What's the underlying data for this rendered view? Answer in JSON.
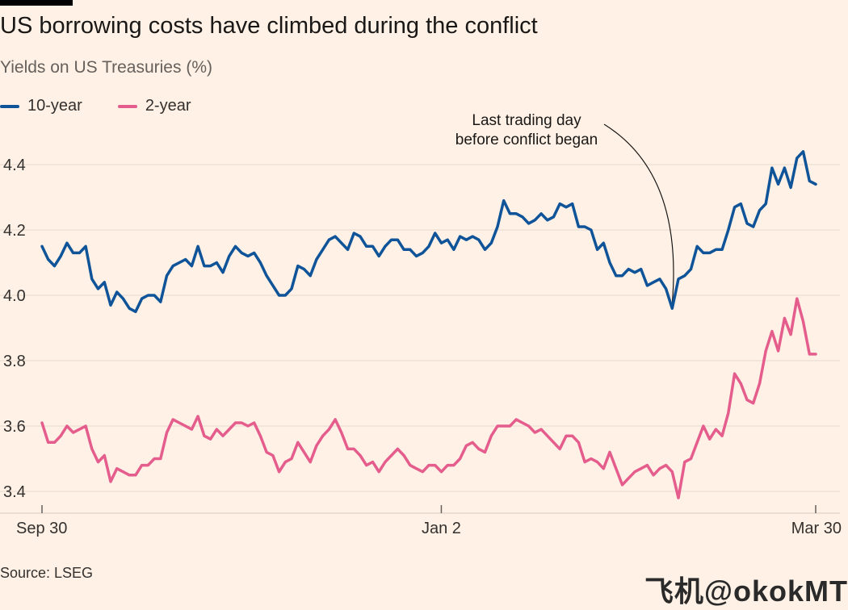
{
  "header": {
    "title": "US borrowing costs have climbed during the conflict",
    "subtitle": "Yields on US Treasuries (%)"
  },
  "footer": {
    "source": "Source: LSEG",
    "watermark": "飞机@okokMT"
  },
  "chart_data": {
    "type": "line",
    "title": "US borrowing costs have climbed during the conflict",
    "subtitle": "Yields on US Treasuries (%)",
    "xlabel": "",
    "ylabel": "",
    "ylim": [
      3.35,
      4.5
    ],
    "yticks": [
      3.4,
      3.6,
      3.8,
      4.0,
      4.2,
      4.4
    ],
    "ytick_labels": [
      "3.4",
      "3.6",
      "3.8",
      "4.0",
      "4.2",
      "4.4"
    ],
    "xticks": [
      {
        "index": 0,
        "label": "Sep 30"
      },
      {
        "index": 64,
        "label": "Jan 2"
      },
      {
        "index": 124,
        "label": "Mar 30"
      }
    ],
    "grid": true,
    "legend_position": "top-left",
    "n_points": 125,
    "series": [
      {
        "name": "10-year",
        "color": "#0F5499",
        "values": [
          4.15,
          4.11,
          4.09,
          4.12,
          4.16,
          4.13,
          4.13,
          4.15,
          4.05,
          4.02,
          4.04,
          3.97,
          4.01,
          3.99,
          3.96,
          3.95,
          3.99,
          4.0,
          4.0,
          3.98,
          4.06,
          4.09,
          4.1,
          4.11,
          4.09,
          4.15,
          4.09,
          4.09,
          4.1,
          4.07,
          4.12,
          4.15,
          4.13,
          4.12,
          4.13,
          4.1,
          4.06,
          4.03,
          4.0,
          4.0,
          4.02,
          4.09,
          4.08,
          4.06,
          4.11,
          4.14,
          4.17,
          4.18,
          4.16,
          4.14,
          4.19,
          4.18,
          4.15,
          4.15,
          4.12,
          4.15,
          4.17,
          4.17,
          4.14,
          4.14,
          4.12,
          4.13,
          4.15,
          4.19,
          4.16,
          4.17,
          4.14,
          4.18,
          4.17,
          4.18,
          4.17,
          4.14,
          4.16,
          4.21,
          4.29,
          4.25,
          4.25,
          4.24,
          4.22,
          4.23,
          4.25,
          4.23,
          4.24,
          4.28,
          4.27,
          4.28,
          4.21,
          4.21,
          4.2,
          4.14,
          4.16,
          4.1,
          4.06,
          4.06,
          4.08,
          4.07,
          4.08,
          4.03,
          4.04,
          4.05,
          4.02,
          3.96,
          4.05,
          4.06,
          4.08,
          4.15,
          4.13,
          4.13,
          4.14,
          4.14,
          4.2,
          4.27,
          4.28,
          4.22,
          4.21,
          4.26,
          4.28,
          4.39,
          4.34,
          4.39,
          4.33,
          4.42,
          4.44,
          4.35,
          4.34
        ]
      },
      {
        "name": "2-year",
        "color": "#E45D8C",
        "values": [
          3.61,
          3.55,
          3.55,
          3.57,
          3.6,
          3.58,
          3.59,
          3.6,
          3.53,
          3.49,
          3.51,
          3.43,
          3.47,
          3.46,
          3.45,
          3.45,
          3.48,
          3.48,
          3.5,
          3.5,
          3.58,
          3.62,
          3.61,
          3.6,
          3.59,
          3.63,
          3.57,
          3.56,
          3.59,
          3.57,
          3.59,
          3.61,
          3.61,
          3.6,
          3.61,
          3.57,
          3.52,
          3.51,
          3.46,
          3.49,
          3.5,
          3.55,
          3.52,
          3.49,
          3.54,
          3.57,
          3.59,
          3.62,
          3.58,
          3.53,
          3.53,
          3.51,
          3.48,
          3.49,
          3.46,
          3.49,
          3.51,
          3.53,
          3.51,
          3.48,
          3.47,
          3.46,
          3.48,
          3.48,
          3.46,
          3.48,
          3.48,
          3.5,
          3.54,
          3.55,
          3.53,
          3.52,
          3.57,
          3.6,
          3.6,
          3.6,
          3.62,
          3.61,
          3.6,
          3.58,
          3.59,
          3.57,
          3.55,
          3.53,
          3.57,
          3.57,
          3.55,
          3.49,
          3.5,
          3.49,
          3.47,
          3.52,
          3.47,
          3.42,
          3.44,
          3.46,
          3.47,
          3.48,
          3.45,
          3.47,
          3.48,
          3.46,
          3.38,
          3.49,
          3.5,
          3.55,
          3.6,
          3.56,
          3.59,
          3.57,
          3.64,
          3.76,
          3.73,
          3.68,
          3.67,
          3.73,
          3.83,
          3.89,
          3.83,
          3.93,
          3.88,
          3.99,
          3.92,
          3.82,
          3.82
        ]
      }
    ],
    "annotations": [
      {
        "index": 101,
        "lines": [
          "Last trading day",
          "before conflict began"
        ]
      }
    ]
  }
}
